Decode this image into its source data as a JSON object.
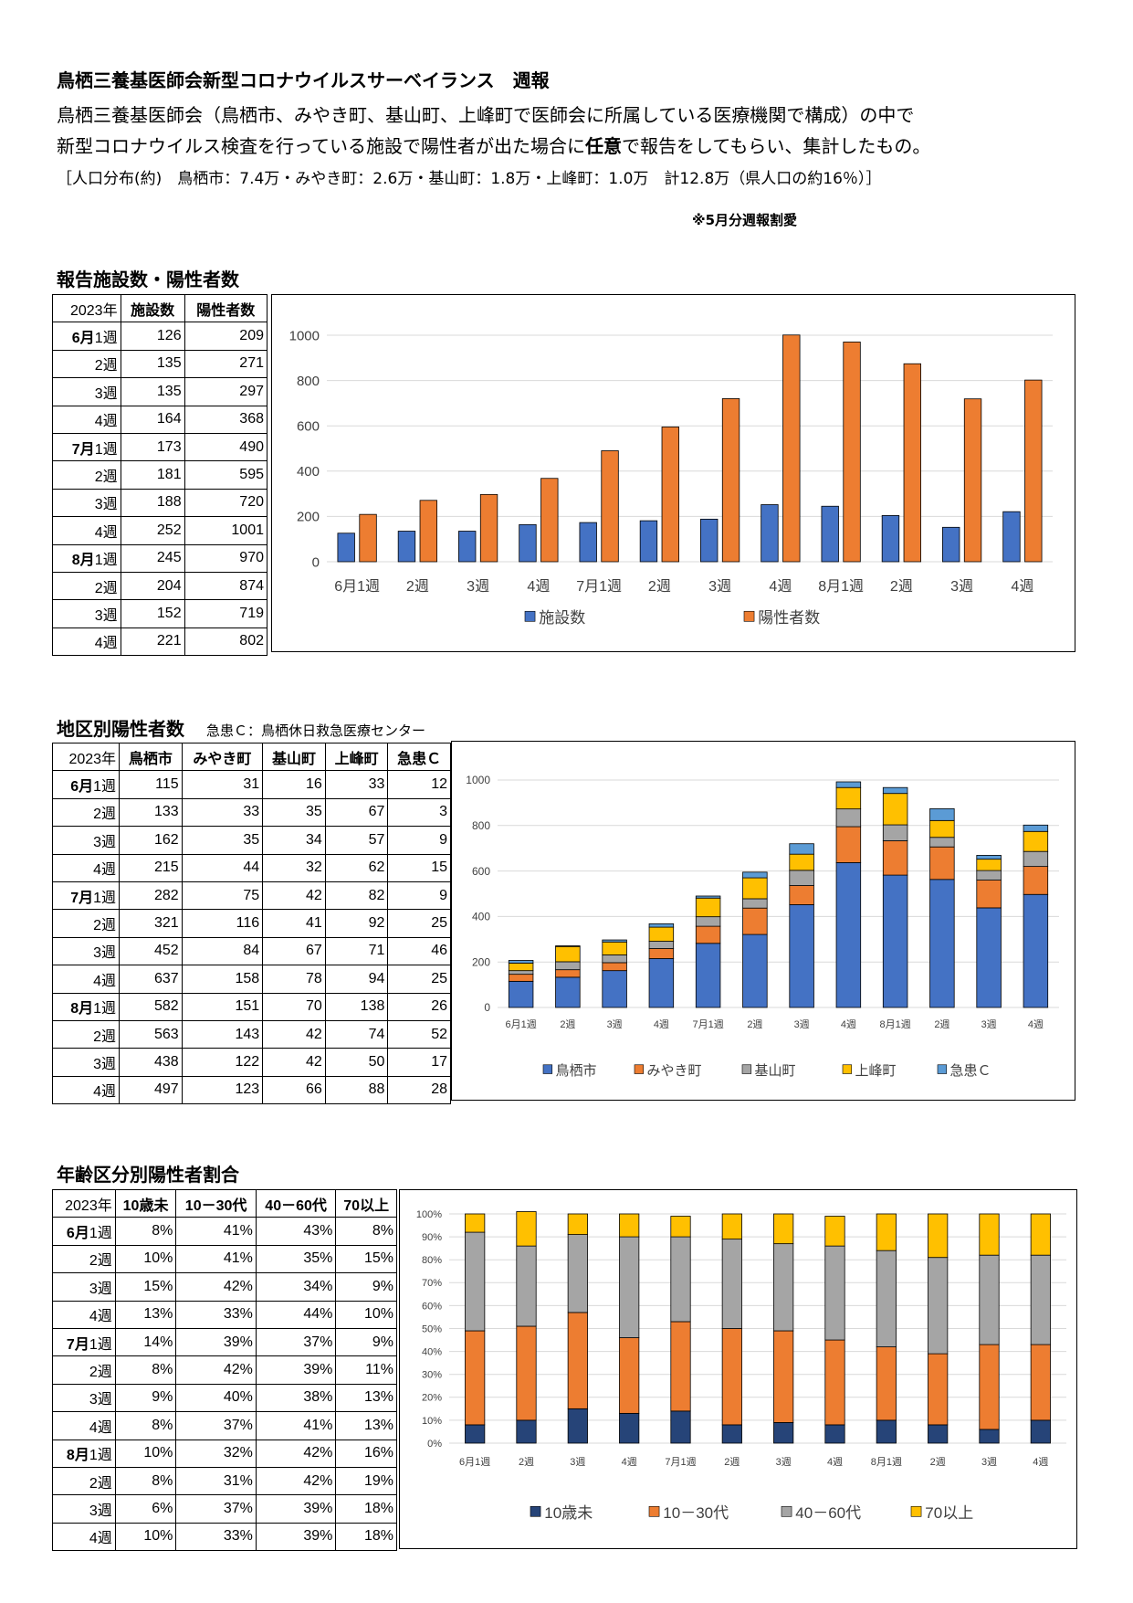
{
  "header": {
    "title": "鳥栖三養基医師会新型コロナウイルスサーベイランス　週報",
    "desc_line1": "鳥栖三養基医師会（鳥栖市、みやき町、基山町、上峰町で医師会に所属している医療機関で構成）の中で",
    "desc_line2_a": "新型コロナウイルス検査を行っている施設で陽性者が出た場合に",
    "desc_line2_b": "任意",
    "desc_line2_c": "で報告をしてもらい、集計したもの。",
    "population": "［人口分布(約)　鳥栖市：7.4万・みやき町：2.6万・基山町：1.8万・上峰町：1.0万　計12.8万（県人口の約16％）］",
    "note": "※5月分週報割愛"
  },
  "weeks": [
    {
      "m": "6月",
      "w": "1週"
    },
    {
      "m": "",
      "w": "2週"
    },
    {
      "m": "",
      "w": "3週"
    },
    {
      "m": "",
      "w": "4週"
    },
    {
      "m": "7月",
      "w": "1週"
    },
    {
      "m": "",
      "w": "2週"
    },
    {
      "m": "",
      "w": "3週"
    },
    {
      "m": "",
      "w": "4週"
    },
    {
      "m": "8月",
      "w": "1週"
    },
    {
      "m": "",
      "w": "2週"
    },
    {
      "m": "",
      "w": "3週"
    },
    {
      "m": "",
      "w": "4週"
    }
  ],
  "week_labels": [
    "6月1週",
    "2週",
    "3週",
    "4週",
    "7月1週",
    "2週",
    "3週",
    "4週",
    "8月1週",
    "2週",
    "3週",
    "4週"
  ],
  "section1": {
    "title": "報告施設数・陽性者数",
    "headers": [
      "2023年",
      "施設数",
      "陽性者数"
    ],
    "rows": [
      [
        "126",
        "209"
      ],
      [
        "135",
        "271"
      ],
      [
        "135",
        "297"
      ],
      [
        "164",
        "368"
      ],
      [
        "173",
        "490"
      ],
      [
        "181",
        "595"
      ],
      [
        "188",
        "720"
      ],
      [
        "252",
        "1001"
      ],
      [
        "245",
        "970"
      ],
      [
        "204",
        "874"
      ],
      [
        "152",
        "719"
      ],
      [
        "221",
        "802"
      ]
    ]
  },
  "section2": {
    "title": "地区別陽性者数",
    "subtitle": "急患Ｃ：鳥栖休日救急医療センター",
    "headers": [
      "2023年",
      "鳥栖市",
      "みやき町",
      "基山町",
      "上峰町",
      "急患Ｃ"
    ],
    "rows": [
      [
        "115",
        "31",
        "16",
        "33",
        "12"
      ],
      [
        "133",
        "33",
        "35",
        "67",
        "3"
      ],
      [
        "162",
        "35",
        "34",
        "57",
        "9"
      ],
      [
        "215",
        "44",
        "32",
        "62",
        "15"
      ],
      [
        "282",
        "75",
        "42",
        "82",
        "9"
      ],
      [
        "321",
        "116",
        "41",
        "92",
        "25"
      ],
      [
        "452",
        "84",
        "67",
        "71",
        "46"
      ],
      [
        "637",
        "158",
        "78",
        "94",
        "25"
      ],
      [
        "582",
        "151",
        "70",
        "138",
        "26"
      ],
      [
        "563",
        "143",
        "42",
        "74",
        "52"
      ],
      [
        "438",
        "122",
        "42",
        "50",
        "17"
      ],
      [
        "497",
        "123",
        "66",
        "88",
        "28"
      ]
    ]
  },
  "section3": {
    "title": "年齢区分別陽性者割合",
    "headers": [
      "2023年",
      "10歳未",
      "10－30代",
      "40－60代",
      "70以上"
    ],
    "rows": [
      [
        "8%",
        "41%",
        "43%",
        "8%"
      ],
      [
        "10%",
        "41%",
        "35%",
        "15%"
      ],
      [
        "15%",
        "42%",
        "34%",
        "9%"
      ],
      [
        "13%",
        "33%",
        "44%",
        "10%"
      ],
      [
        "14%",
        "39%",
        "37%",
        "9%"
      ],
      [
        "8%",
        "42%",
        "39%",
        "11%"
      ],
      [
        "9%",
        "40%",
        "38%",
        "13%"
      ],
      [
        "8%",
        "37%",
        "41%",
        "13%"
      ],
      [
        "10%",
        "32%",
        "42%",
        "16%"
      ],
      [
        "8%",
        "31%",
        "42%",
        "19%"
      ],
      [
        "6%",
        "37%",
        "39%",
        "18%"
      ],
      [
        "10%",
        "33%",
        "39%",
        "18%"
      ]
    ]
  },
  "chart_data": [
    {
      "type": "bar",
      "categories": [
        "6月1週",
        "2週",
        "3週",
        "4週",
        "7月1週",
        "2週",
        "3週",
        "4週",
        "8月1週",
        "2週",
        "3週",
        "4週"
      ],
      "series": [
        {
          "name": "施設数",
          "values": [
            126,
            135,
            135,
            164,
            173,
            181,
            188,
            252,
            245,
            204,
            152,
            221
          ],
          "color": "#4472C4"
        },
        {
          "name": "陽性者数",
          "values": [
            209,
            271,
            297,
            368,
            490,
            595,
            720,
            1001,
            970,
            874,
            719,
            802
          ],
          "color": "#ED7D31"
        }
      ],
      "ylim": [
        0,
        1000
      ],
      "yticks": [
        0,
        200,
        400,
        600,
        800,
        1000
      ],
      "legend": "bottom",
      "grid": true
    },
    {
      "type": "bar",
      "stacked": true,
      "categories": [
        "6月1週",
        "2週",
        "3週",
        "4週",
        "7月1週",
        "2週",
        "3週",
        "4週",
        "8月1週",
        "2週",
        "3週",
        "4週"
      ],
      "series": [
        {
          "name": "鳥栖市",
          "values": [
            115,
            133,
            162,
            215,
            282,
            321,
            452,
            637,
            582,
            563,
            438,
            497
          ],
          "color": "#4472C4"
        },
        {
          "name": "みやき町",
          "values": [
            31,
            33,
            35,
            44,
            75,
            116,
            84,
            158,
            151,
            143,
            122,
            123
          ],
          "color": "#ED7D31"
        },
        {
          "name": "基山町",
          "values": [
            16,
            35,
            34,
            32,
            42,
            41,
            67,
            78,
            70,
            42,
            42,
            66
          ],
          "color": "#A5A5A5"
        },
        {
          "name": "上峰町",
          "values": [
            33,
            67,
            57,
            62,
            82,
            92,
            71,
            94,
            138,
            74,
            50,
            88
          ],
          "color": "#FFC000"
        },
        {
          "name": "急患Ｃ",
          "values": [
            12,
            3,
            9,
            15,
            9,
            25,
            46,
            25,
            26,
            52,
            17,
            28
          ],
          "color": "#5B9BD5"
        }
      ],
      "ylim": [
        0,
        1000
      ],
      "yticks": [
        0,
        200,
        400,
        600,
        800,
        1000
      ],
      "legend": "bottom",
      "grid": true
    },
    {
      "type": "bar",
      "stacked": true,
      "percent": true,
      "categories": [
        "6月1週",
        "2週",
        "3週",
        "4週",
        "7月1週",
        "2週",
        "3週",
        "4週",
        "8月1週",
        "2週",
        "3週",
        "4週"
      ],
      "series": [
        {
          "name": "10歳未",
          "values": [
            8,
            10,
            15,
            13,
            14,
            8,
            9,
            8,
            10,
            8,
            6,
            10
          ],
          "color": "#264478"
        },
        {
          "name": "10－30代",
          "values": [
            41,
            41,
            42,
            33,
            39,
            42,
            40,
            37,
            32,
            31,
            37,
            33
          ],
          "color": "#ED7D31"
        },
        {
          "name": "40－60代",
          "values": [
            43,
            35,
            34,
            44,
            37,
            39,
            38,
            41,
            42,
            42,
            39,
            39
          ],
          "color": "#A5A5A5"
        },
        {
          "name": "70以上",
          "values": [
            8,
            15,
            9,
            10,
            9,
            11,
            13,
            13,
            16,
            19,
            18,
            18
          ],
          "color": "#FFC000"
        }
      ],
      "ylim": [
        0,
        100
      ],
      "yticks": [
        0,
        10,
        20,
        30,
        40,
        50,
        60,
        70,
        80,
        90,
        100
      ],
      "yticklabels": [
        "0%",
        "10%",
        "20%",
        "30%",
        "40%",
        "50%",
        "60%",
        "70%",
        "80%",
        "90%",
        "100%"
      ],
      "legend": "bottom",
      "grid": true
    }
  ]
}
